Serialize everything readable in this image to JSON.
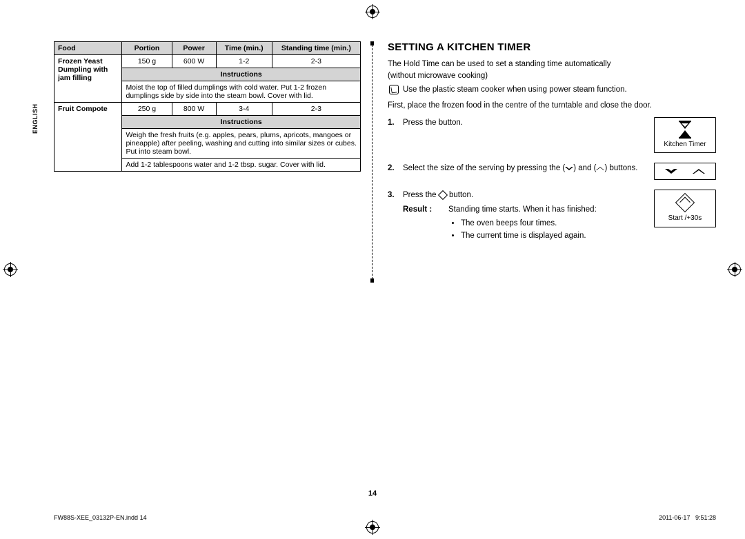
{
  "language_label": "ENGLISH",
  "table": {
    "headers": {
      "food": "Food",
      "portion": "Portion",
      "power": "Power",
      "time": "Time (min.)",
      "stand": "Standing time (min.)",
      "instr": "Instructions"
    },
    "row1": {
      "food": "Frozen Yeast Dumpling with jam filling",
      "portion": "150 g",
      "power": "600 W",
      "time": "1-2",
      "stand": "2-3",
      "instr": "Moist the top of filled dumplings with cold water. Put 1-2 frozen dumplings side by side into the steam bowl. Cover with lid."
    },
    "row2": {
      "food": "Fruit Compote",
      "portion": "250 g",
      "power": "800 W",
      "time": "3-4",
      "stand": "2-3",
      "instr1": "Weigh the fresh fruits (e.g. apples, pears, plums, apricots, mangoes or pineapple) after peeling, washing and cutting into similar sizes or cubes. Put into steam bowl.",
      "instr2": "Add 1-2 tablespoons water and 1-2 tbsp. sugar. Cover with lid."
    }
  },
  "rcol": {
    "title": "SETTING A KITCHEN TIMER",
    "p1": "The Hold Time can be used to set a standing time automatically",
    "p2": "(without microwave cooking)",
    "tip": "Use the plastic steam cooker when using power steam function.",
    "p3": "First, place the frozen food in the centre of the turntable and close the door.",
    "step1": "Press the button.",
    "step2a": "Select the size of the serving by pressing the (",
    "step2b": ") and (",
    "step2c": ") buttons.",
    "step3": "Press the ",
    "step3b": " button.",
    "result_label": "Result :",
    "result_text": "Standing time starts. When it has finished:",
    "bullet1": "The oven beeps four times.",
    "bullet2": "The current time is displayed again.",
    "btn1": "Kitchen Timer",
    "btn3": "Start /+30s"
  },
  "page_num": "14",
  "footer": {
    "left": "FW88S-XEE_03132P-EN.indd   14",
    "date": "2011-06-17",
    "time": "9:51:28"
  }
}
